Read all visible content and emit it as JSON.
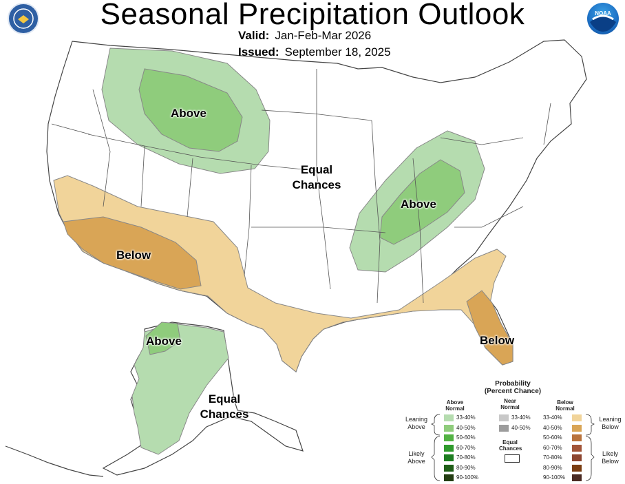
{
  "header": {
    "title": "Seasonal Precipitation Outlook",
    "valid_label": "Valid:",
    "valid_value": "Jan-Feb-Mar 2026",
    "issued_label": "Issued:",
    "issued_value": "September 18, 2025"
  },
  "logos": {
    "left": "us-department-of-commerce-seal",
    "right": "noaa-logo",
    "noaa_text": "NOAA"
  },
  "regions": {
    "north_above": "Above",
    "ohio_above": "Above",
    "sw_below": "Below",
    "fl_below": "Below",
    "equal_1": "Equal",
    "equal_2": "Chances",
    "ak_above": "Above",
    "ak_equal_1": "Equal",
    "ak_equal_2": "Chances"
  },
  "colors": {
    "above_33_40": "#b5dcaf",
    "above_40_50": "#8fcc7c",
    "above_50_60": "#52b243",
    "above_60_70": "#2f9a2c",
    "above_70_80": "#1d7d20",
    "above_80_90": "#1f5e17",
    "above_90_100": "#233d12",
    "near_33_40": "#c8c8c8",
    "near_40_50": "#9c9c9c",
    "below_33_40": "#f1d49a",
    "below_40_50": "#d9a556",
    "below_50_60": "#b9733c",
    "below_60_70": "#a25538",
    "below_70_80": "#8d4630",
    "below_80_90": "#7a3d12",
    "below_90_100": "#4a2a22",
    "border": "#555555"
  },
  "legend": {
    "title_1": "Probability",
    "title_2": "(Percent Chance)",
    "above_head_1": "Above",
    "above_head_2": "Normal",
    "near_head_1": "Near",
    "near_head_2": "Normal",
    "below_head_1": "Below",
    "below_head_2": "Normal",
    "leaning_above_1": "Leaning",
    "leaning_above_2": "Above",
    "likely_above_1": "Likely",
    "likely_above_2": "Above",
    "leaning_below_1": "Leaning",
    "leaning_below_2": "Below",
    "likely_below_1": "Likely",
    "likely_below_2": "Below",
    "equal_1": "Equal",
    "equal_2": "Chances",
    "above_items": [
      "33-40%",
      "40-50%",
      "50-60%",
      "60-70%",
      "70-80%",
      "80-90%",
      "90-100%"
    ],
    "near_items": [
      "33-40%",
      "40-50%"
    ],
    "below_items": [
      "33-40%",
      "40-50%",
      "50-60%",
      "60-70%",
      "70-80%",
      "80-90%",
      "90-100%"
    ]
  }
}
